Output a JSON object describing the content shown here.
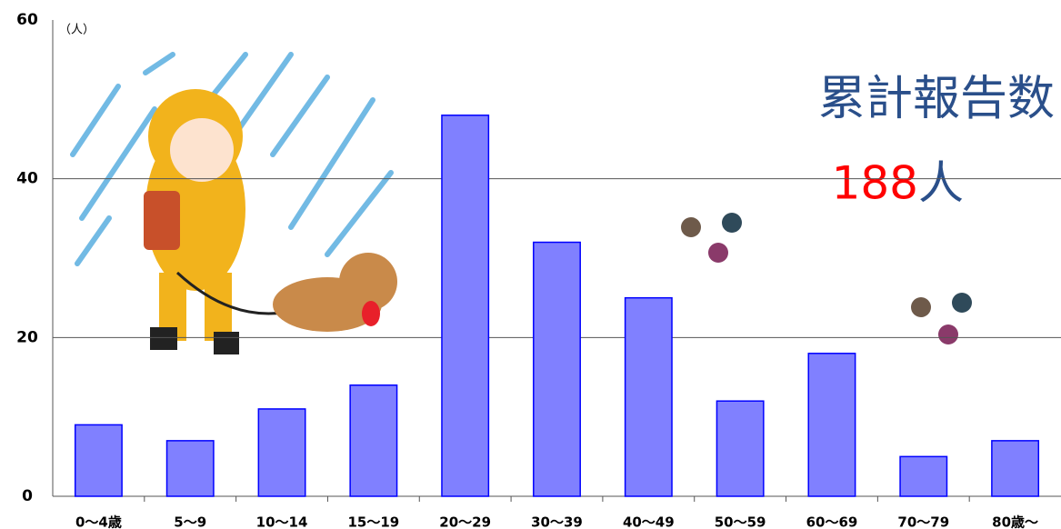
{
  "chart_data": {
    "type": "bar",
    "unit_label": "（人）",
    "annotation": "累計報告数",
    "total": 188,
    "total_unit": "人",
    "categories": [
      "0～4歳",
      "5～9",
      "10～14",
      "15～19",
      "20～29",
      "30～39",
      "40～49",
      "50～59",
      "60～69",
      "70～79",
      "80歳～"
    ],
    "values": [
      9,
      7,
      11,
      14,
      48,
      32,
      25,
      12,
      18,
      5,
      7
    ],
    "color": "#8080ff",
    "edge_color": "#0000ff",
    "ylim": [
      0,
      60
    ],
    "yticks": [
      0,
      20,
      40,
      60
    ],
    "grid": true
  }
}
